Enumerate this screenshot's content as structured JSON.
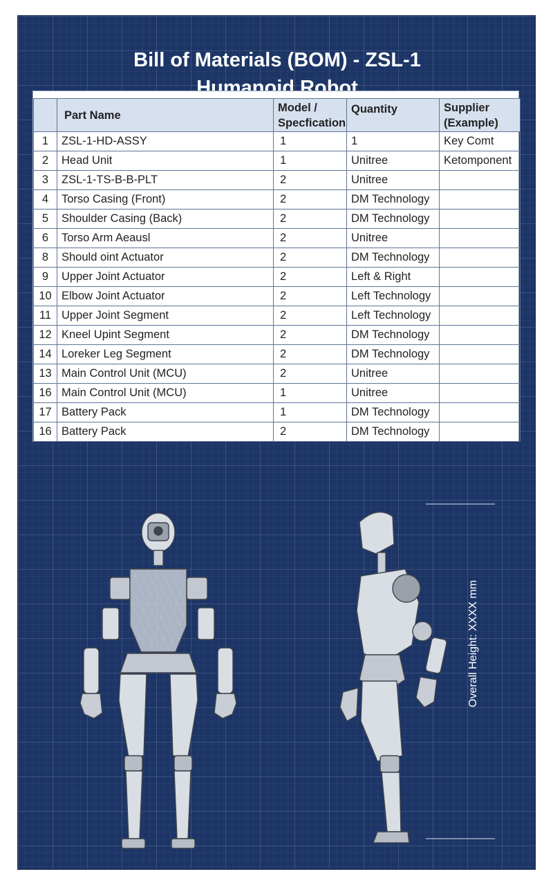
{
  "title": {
    "line1": "Bill of Materials (BOM) - ZSL-1",
    "line2": "Humanoid Robot"
  },
  "table": {
    "headers": {
      "index": "",
      "part_name": "Part Name",
      "model_line1": "Model /",
      "model_line2": "Specfication",
      "quantity": "Quantity",
      "supplier_line1": "Supplier",
      "supplier_line2": "(Example)"
    },
    "rows": [
      {
        "num": "1",
        "part": "ZSL-1-HD-ASSY",
        "model": "1",
        "qty": "1",
        "supplier": "Key Comt"
      },
      {
        "num": "2",
        "part": "Head Unit",
        "model": "1",
        "qty": "Unitree",
        "supplier": "Ketomponent"
      },
      {
        "num": "3",
        "part": "ZSL-1-TS-B-B-PLT",
        "model": "2",
        "qty": "Unitree",
        "supplier": ""
      },
      {
        "num": "4",
        "part": "Torso Casing (Front)",
        "model": "2",
        "qty": "DM Technology",
        "supplier": ""
      },
      {
        "num": "5",
        "part": "Shoulder Casing (Back)",
        "model": "2",
        "qty": "DM Technology",
        "supplier": ""
      },
      {
        "num": "6",
        "part": "Torso Arm Aeausl",
        "model": "2",
        "qty": "Unitree",
        "supplier": ""
      },
      {
        "num": "8",
        "part": "Should oint Actuator",
        "model": "2",
        "qty": "DM Technology",
        "supplier": ""
      },
      {
        "num": "9",
        "part": "Upper Joint Actuator",
        "model": "2",
        "qty": "Left & Right",
        "supplier": ""
      },
      {
        "num": "10",
        "part": "Elbow Joint Actuator",
        "model": "2",
        "qty": "Left Technology",
        "supplier": ""
      },
      {
        "num": "11",
        "part": "Upper Joint Segment",
        "model": "2",
        "qty": "Left Technology",
        "supplier": ""
      },
      {
        "num": "12",
        "part": "Kneel Upint Segment",
        "model": "2",
        "qty": "DM Technology",
        "supplier": ""
      },
      {
        "num": "14",
        "part": "Loreker Leg Segment",
        "model": "2",
        "qty": "DM Technology",
        "supplier": ""
      },
      {
        "num": "13",
        "part": "Main Control Unit (MCU)",
        "model": "2",
        "qty": "Unitree",
        "supplier": ""
      },
      {
        "num": "16",
        "part": "Main Control Unit (MCU)",
        "model": "1",
        "qty": "Unitree",
        "supplier": ""
      },
      {
        "num": "17",
        "part": "Battery Pack",
        "model": "1",
        "qty": "DM Technology",
        "supplier": ""
      },
      {
        "num": "16",
        "part": "Battery Pack",
        "model": "2",
        "qty": "DM Technology",
        "supplier": ""
      }
    ]
  },
  "drawing": {
    "dimension_label": "Overall Height: XXXX mm"
  },
  "colors": {
    "background": "#1c3566",
    "header_fill": "#d7e0ee",
    "robot_fill": "#d9dde4",
    "robot_stroke": "#4a4f58"
  }
}
